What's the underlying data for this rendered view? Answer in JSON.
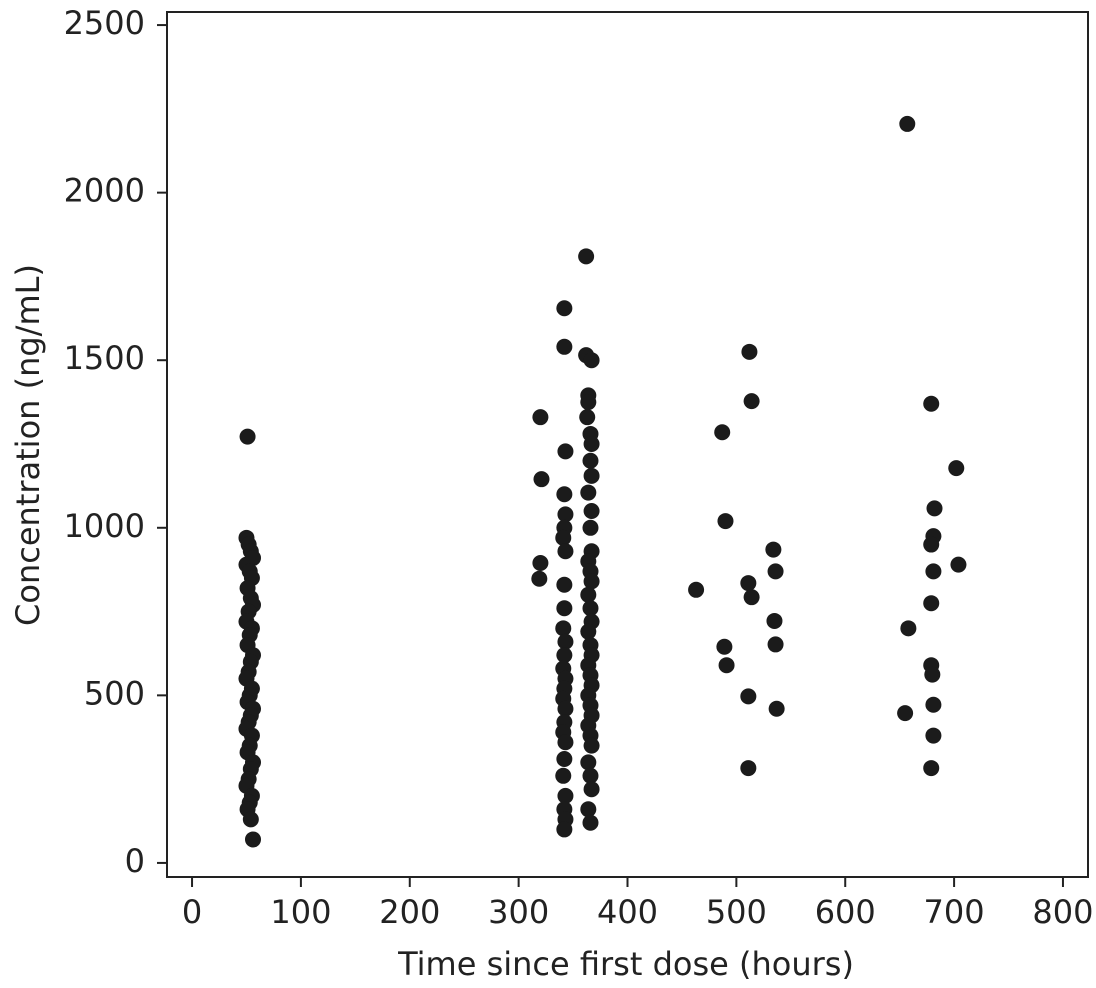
{
  "chart_data": {
    "type": "scatter",
    "x_label": "Time since first dose (hours)",
    "y_label": "Concentration (ng/mL)",
    "color": "#1b1b1b",
    "xlim": [
      -23,
      823
    ],
    "ylim": [
      -42,
      2539
    ],
    "xticks": [
      0,
      100,
      200,
      300,
      400,
      500,
      600,
      700,
      800
    ],
    "yticks": [
      0,
      500,
      1000,
      1500,
      2000,
      2500
    ],
    "x": [
      51,
      50,
      52,
      54,
      56,
      50,
      53,
      55,
      51,
      54,
      56,
      52,
      50,
      55,
      53,
      51,
      56,
      54,
      52,
      50,
      55,
      53,
      51,
      56,
      54,
      52,
      50,
      55,
      53,
      51,
      56,
      54,
      52,
      50,
      55,
      53,
      51,
      54,
      56,
      320,
      321,
      320,
      319,
      342,
      342,
      343,
      342,
      343,
      342,
      341,
      343,
      342,
      342,
      341,
      343,
      342,
      341,
      343,
      342,
      341,
      343,
      342,
      341,
      343,
      342,
      341,
      343,
      342,
      343,
      342,
      362,
      362,
      367,
      364,
      364,
      363,
      366,
      367,
      366,
      367,
      364,
      367,
      366,
      367,
      364,
      366,
      367,
      364,
      366,
      367,
      364,
      366,
      367,
      364,
      366,
      367,
      364,
      366,
      367,
      364,
      366,
      367,
      364,
      366,
      367,
      364,
      366,
      463,
      487,
      490,
      489,
      491,
      512,
      514,
      511,
      514,
      511,
      511,
      534,
      536,
      535,
      536,
      537,
      657,
      658,
      655,
      679,
      682,
      681,
      679,
      681,
      679,
      679,
      680,
      681,
      681,
      679,
      702,
      704
    ],
    "values": [
      1272,
      970,
      950,
      930,
      910,
      890,
      870,
      850,
      820,
      790,
      770,
      750,
      720,
      700,
      680,
      650,
      620,
      600,
      570,
      550,
      520,
      500,
      480,
      460,
      440,
      420,
      400,
      380,
      350,
      330,
      300,
      280,
      250,
      230,
      200,
      180,
      160,
      130,
      70,
      1330,
      1145,
      895,
      848,
      1655,
      1540,
      1228,
      1100,
      1040,
      1000,
      970,
      930,
      830,
      760,
      700,
      660,
      620,
      580,
      550,
      520,
      490,
      460,
      420,
      390,
      360,
      310,
      260,
      200,
      160,
      130,
      100,
      1810,
      1515,
      1500,
      1395,
      1375,
      1330,
      1280,
      1250,
      1200,
      1155,
      1105,
      1050,
      1000,
      930,
      900,
      870,
      840,
      800,
      760,
      720,
      690,
      650,
      620,
      590,
      560,
      530,
      500,
      470,
      440,
      410,
      380,
      350,
      300,
      260,
      220,
      160,
      120,
      815,
      1285,
      1020,
      645,
      590,
      1525,
      1378,
      835,
      793,
      497,
      283,
      935,
      870,
      722,
      652,
      460,
      2205,
      700,
      447,
      1370,
      1058,
      975,
      950,
      870,
      775,
      590,
      562,
      472,
      380,
      283,
      1178,
      890
    ]
  }
}
